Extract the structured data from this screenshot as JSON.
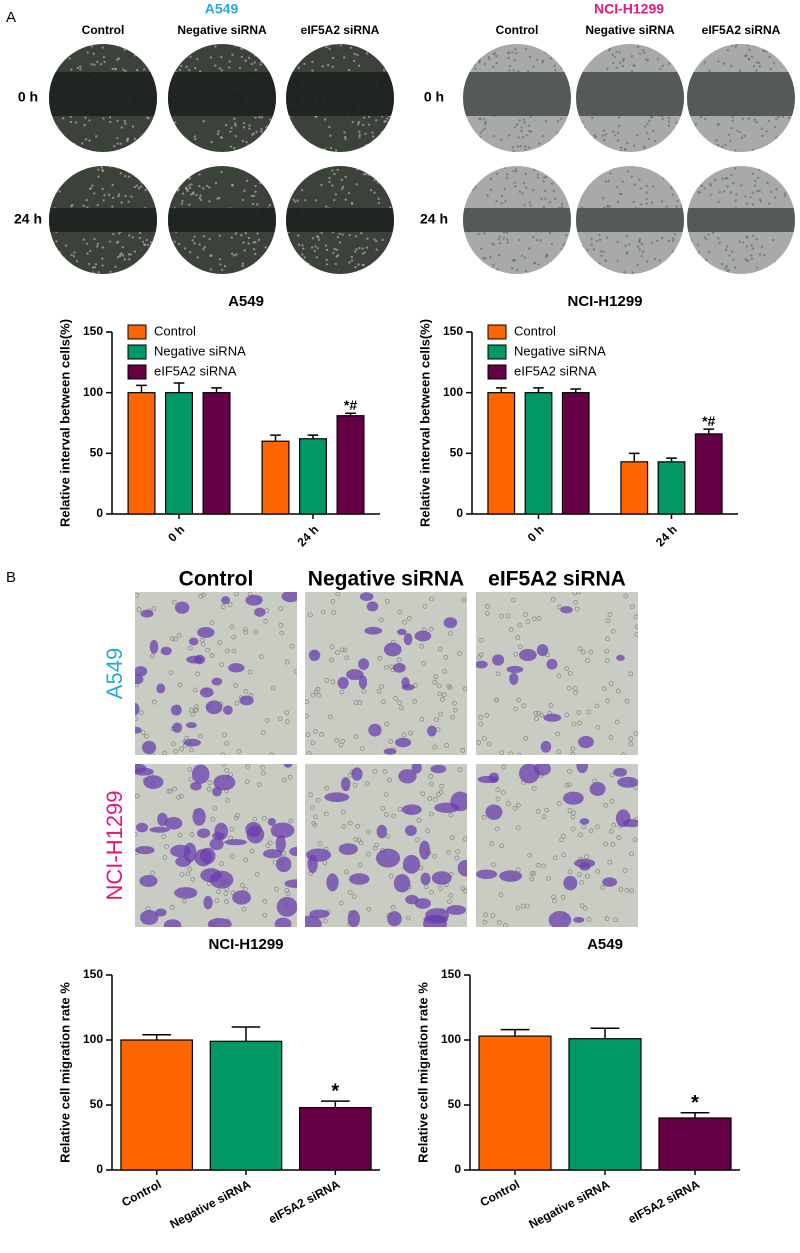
{
  "figure": {
    "panel_a": {
      "label": "A",
      "rows": [
        "0 h",
        "24 h"
      ],
      "groups": [
        {
          "title": "A549",
          "color": "#29a8e0",
          "columns": [
            "Control",
            "Negative siRNA",
            "eIF5A2 siRNA"
          ]
        },
        {
          "title": "NCI-H1299",
          "color": "#e0197d",
          "columns": [
            "Control",
            "Negative siRNA",
            "eIF5A2 siRNA"
          ]
        }
      ]
    },
    "panel_b": {
      "label": "B",
      "columns": [
        "Control",
        "Negative siRNA",
        "eIF5A2 siRNA"
      ],
      "rows": [
        {
          "text": "A549",
          "color": "#29a8e0"
        },
        {
          "text": "NCI-H1299",
          "color": "#e0197d"
        }
      ]
    }
  },
  "chart_data": [
    {
      "type": "bar",
      "title": "A549",
      "ylabel": "Relative interval between cells(%)",
      "categories": [
        "0 h",
        "24 h"
      ],
      "series": [
        {
          "name": "Control",
          "color": "#ff6600",
          "values": [
            100,
            60
          ],
          "errors": [
            6,
            5
          ]
        },
        {
          "name": "Negative siRNA",
          "color": "#009966",
          "values": [
            100,
            62
          ],
          "errors": [
            8,
            3
          ]
        },
        {
          "name": "eIF5A2 siRNA",
          "color": "#660044",
          "values": [
            100,
            81
          ],
          "errors": [
            4,
            2
          ]
        }
      ],
      "annotations": [
        {
          "text": "*#",
          "series": 2,
          "index": 1
        }
      ],
      "ylim": [
        0,
        150
      ],
      "yticks": [
        0,
        50,
        100,
        150
      ],
      "legend": "upper left"
    },
    {
      "type": "bar",
      "title": "NCI-H1299",
      "ylabel": "Relative interval between cells(%)",
      "categories": [
        "0 h",
        "24 h"
      ],
      "series": [
        {
          "name": "Control",
          "color": "#ff6600",
          "values": [
            100,
            43
          ],
          "errors": [
            4,
            7
          ]
        },
        {
          "name": "Negative siRNA",
          "color": "#009966",
          "values": [
            100,
            43
          ],
          "errors": [
            4,
            3
          ]
        },
        {
          "name": "eIF5A2 siRNA",
          "color": "#660044",
          "values": [
            100,
            66
          ],
          "errors": [
            3,
            4
          ]
        }
      ],
      "annotations": [
        {
          "text": "*#",
          "series": 2,
          "index": 1
        }
      ],
      "ylim": [
        0,
        150
      ],
      "yticks": [
        0,
        50,
        100,
        150
      ],
      "legend": "upper left"
    },
    {
      "type": "bar",
      "title": "NCI-H1299",
      "ylabel": "Relative cell migration rate %",
      "categories": [
        "Control",
        "Negative siRNA",
        "eIF5A2 siRNA"
      ],
      "values": [
        100,
        99,
        48
      ],
      "errors": [
        4,
        11,
        5
      ],
      "colors": [
        "#ff6600",
        "#009966",
        "#660044"
      ],
      "annotations": [
        {
          "text": "*",
          "index": 2
        }
      ],
      "ylim": [
        0,
        150
      ],
      "yticks": [
        0,
        50,
        100,
        150
      ]
    },
    {
      "type": "bar",
      "title": "A549",
      "ylabel": "Relative cell migration rate %",
      "categories": [
        "Control",
        "Negative siRNA",
        "eIF5A2 siRNA"
      ],
      "values": [
        103,
        101,
        40
      ],
      "errors": [
        5,
        8,
        4
      ],
      "colors": [
        "#ff6600",
        "#009966",
        "#660044"
      ],
      "annotations": [
        {
          "text": "*",
          "index": 2
        }
      ],
      "ylim": [
        0,
        150
      ],
      "yticks": [
        0,
        50,
        100,
        150
      ]
    }
  ]
}
